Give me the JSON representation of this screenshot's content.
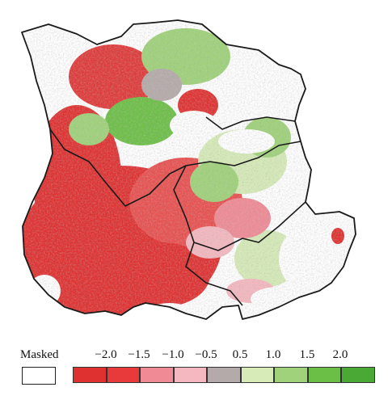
{
  "legend": {
    "masked_label": "Masked",
    "masked_color": "#ffffff",
    "ticks": [
      "−2.0",
      "−1.5",
      "−1.0",
      "−0.5",
      "0.5",
      "1.0",
      "1.5",
      "2.0"
    ],
    "bins": [
      {
        "color": "#e03131"
      },
      {
        "color": "#e83a3a"
      },
      {
        "color": "#f08a95"
      },
      {
        "color": "#f5b8c0"
      },
      {
        "color": "#b5aaaa"
      },
      {
        "color": "#d6ebb8"
      },
      {
        "color": "#9fd27a"
      },
      {
        "color": "#6cbf46"
      },
      {
        "color": "#4aa834"
      }
    ]
  },
  "map": {
    "outline_color": "#1a1a1a",
    "background_color": "#ffffff"
  }
}
